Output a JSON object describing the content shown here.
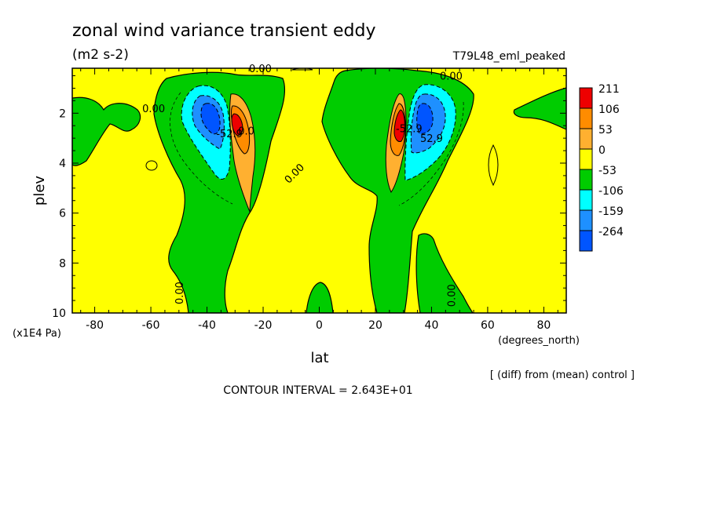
{
  "chart_data": {
    "type": "contour",
    "title": "zonal wind variance transient eddy",
    "units": "(m2 s-2)",
    "experiment": "T79L48_eml_peaked",
    "xlabel": "lat",
    "xunits": "(degrees_north)",
    "ylabel": "plev",
    "yunits": "(x1E4 Pa)",
    "xlim": [
      -88,
      88
    ],
    "ylim": [
      10,
      0.2
    ],
    "xticks": [
      -80,
      -60,
      -40,
      -20,
      0,
      20,
      40,
      60,
      80
    ],
    "yticks": [
      2,
      4,
      6,
      8,
      10
    ],
    "contour_interval": "CONTOUR INTERVAL = 2.643E+01",
    "note": "[ (diff) from (mean) control ]",
    "legend": {
      "labels": [
        "211",
        "106",
        "53",
        "0",
        "-53",
        "-106",
        "-159",
        "-264"
      ],
      "colors": [
        "#ee0000",
        "#ff8c00",
        "#ffb030",
        "#ffff00",
        "#00cc00",
        "#00ffff",
        "#1e90ff",
        "#0055ff"
      ]
    },
    "contour_labels": [
      {
        "text": "0.00",
        "lat": -59,
        "plev": 1.8
      },
      {
        "text": "0.00",
        "lat": -9,
        "plev": 4.4
      },
      {
        "text": "0.00",
        "lat": -50,
        "plev": 9.2
      },
      {
        "text": "0.00",
        "lat": 47,
        "plev": 9.3
      },
      {
        "text": "0.00",
        "lat": -21,
        "plev": 0.2
      },
      {
        "text": "0.00",
        "lat": 47,
        "plev": 0.5
      },
      {
        "text": "0.0",
        "lat": -26,
        "plev": 2.7
      },
      {
        "text": "52.9",
        "lat": 40,
        "plev": 3.0
      },
      {
        "text": "-52.9",
        "lat": -32,
        "plev": 2.8
      },
      {
        "text": "-52.9",
        "lat": 32,
        "plev": 2.6
      }
    ],
    "features": [
      {
        "type": "max",
        "lat": -31,
        "plev": 2.4,
        "value": 211
      },
      {
        "type": "min",
        "lat": -38,
        "plev": 2.2,
        "value": -264
      },
      {
        "type": "max",
        "lat": 29,
        "plev": 2.5,
        "value": 211
      },
      {
        "type": "min",
        "lat": 36,
        "plev": 2.3,
        "value": -264
      }
    ]
  }
}
